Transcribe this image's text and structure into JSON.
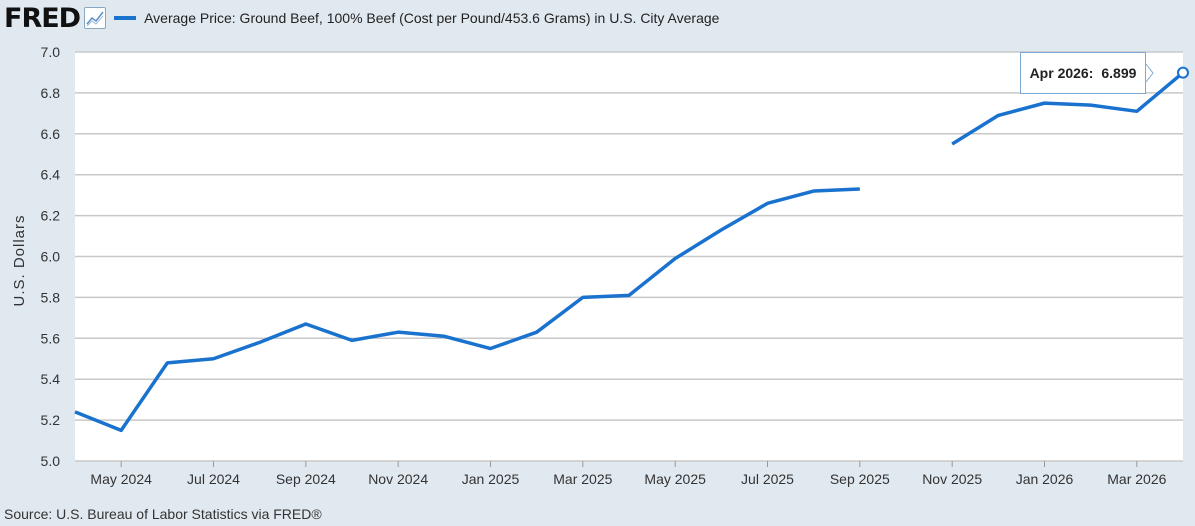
{
  "header": {
    "logo": "FRED",
    "legend_label": "Average Price: Ground Beef, 100% Beef (Cost per Pound/453.6 Grams) in U.S. City Average"
  },
  "source": "Source: U.S. Bureau of Labor Statistics via FRED®",
  "tooltip": {
    "label": "Apr 2026:",
    "value": "6.899"
  },
  "colors": {
    "line": "#1a72cf",
    "background": "#e1e9f0",
    "plot": "#ffffff",
    "grid": "#c8c8c8"
  },
  "chart_data": {
    "type": "line",
    "ylabel": "U.S. Dollars",
    "ylim": [
      5.0,
      7.0
    ],
    "yticks": [
      "5.0",
      "5.2",
      "5.4",
      "5.6",
      "5.8",
      "6.0",
      "6.2",
      "6.4",
      "6.6",
      "6.8",
      "7.0"
    ],
    "xticks": [
      "May 2024",
      "Jul 2024",
      "Sep 2024",
      "Nov 2024",
      "Jan 2025",
      "Mar 2025",
      "May 2025",
      "Jul 2025",
      "Sep 2025",
      "Nov 2025",
      "Jan 2026",
      "Mar 2026"
    ],
    "grid": true,
    "series": [
      {
        "name": "Average Price: Ground Beef, 100% Beef (Cost per Pound/453.6 Grams) in U.S. City Average",
        "x": [
          "Apr 2024",
          "May 2024",
          "Jun 2024",
          "Jul 2024",
          "Aug 2024",
          "Sep 2024",
          "Oct 2024",
          "Nov 2024",
          "Dec 2024",
          "Jan 2025",
          "Feb 2025",
          "Mar 2025",
          "Apr 2025",
          "May 2025",
          "Jun 2025",
          "Jul 2025",
          "Aug 2025",
          "Sep 2025",
          "Oct 2025",
          "Nov 2025",
          "Dec 2025",
          "Jan 2026",
          "Feb 2026",
          "Mar 2026",
          "Apr 2026"
        ],
        "values": [
          5.24,
          5.15,
          5.48,
          5.5,
          5.58,
          5.67,
          5.59,
          5.63,
          5.61,
          5.55,
          5.63,
          5.8,
          5.81,
          5.99,
          6.13,
          6.26,
          6.32,
          6.33,
          null,
          6.55,
          6.69,
          6.75,
          6.74,
          6.71,
          6.899
        ]
      }
    ]
  }
}
